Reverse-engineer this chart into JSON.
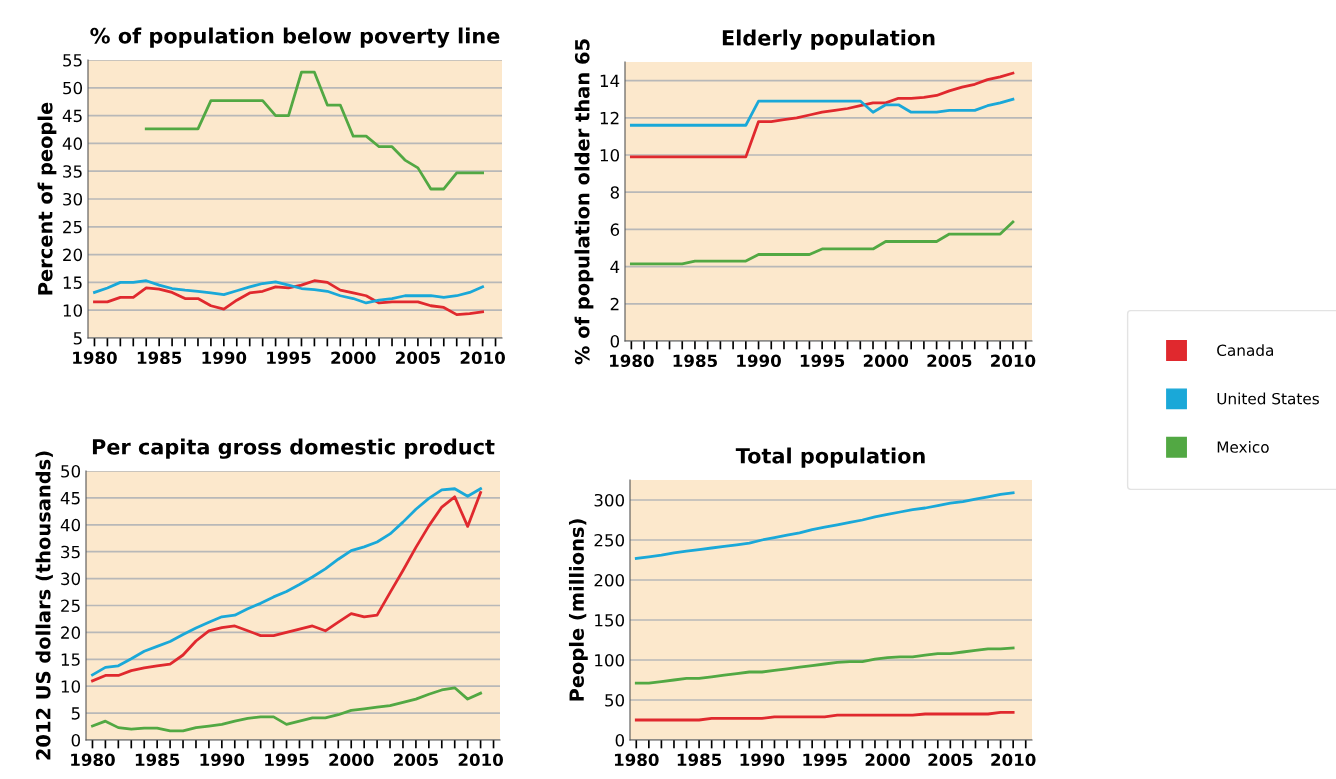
{
  "chart_data": [
    {
      "type": "line",
      "title": "% of population below poverty line",
      "ylabel": "Percent of people",
      "legend": "right",
      "grid": "y",
      "x": [
        1980,
        1981,
        1982,
        1983,
        1984,
        1985,
        1986,
        1987,
        1988,
        1989,
        1990,
        1991,
        1992,
        1993,
        1994,
        1995,
        1996,
        1997,
        1998,
        1999,
        2000,
        2001,
        2002,
        2003,
        2004,
        2005,
        2006,
        2007,
        2008,
        2009,
        2010
      ],
      "xlim": [
        1979.5,
        2011.5
      ],
      "xticks": [
        1980,
        {
          "value": 1981,
          "label": null
        },
        {
          "value": 1982,
          "label": null
        },
        {
          "value": 1983,
          "label": null
        },
        {
          "value": 1984,
          "label": null
        },
        1985,
        {
          "value": 1986,
          "label": null
        },
        {
          "value": 1987,
          "label": null
        },
        {
          "value": 1988,
          "label": null
        },
        {
          "value": 1989,
          "label": null
        },
        1990,
        {
          "value": 1991,
          "label": null
        },
        {
          "value": 1992,
          "label": null
        },
        {
          "value": 1993,
          "label": null
        },
        {
          "value": 1994,
          "label": null
        },
        1995,
        {
          "value": 1996,
          "label": null
        },
        {
          "value": 1997,
          "label": null
        },
        {
          "value": 1998,
          "label": null
        },
        {
          "value": 1999,
          "label": null
        },
        2000,
        {
          "value": 2001,
          "label": null
        },
        {
          "value": 2002,
          "label": null
        },
        {
          "value": 2003,
          "label": null
        },
        {
          "value": 2004,
          "label": null
        },
        2005,
        {
          "value": 2006,
          "label": null
        },
        {
          "value": 2007,
          "label": null
        },
        {
          "value": 2008,
          "label": null
        },
        {
          "value": 2009,
          "label": null
        },
        2010,
        {
          "value": 2011,
          "label": null
        }
      ],
      "ylim": [
        5,
        55
      ],
      "yticks": [
        5,
        10,
        15,
        20,
        25,
        30,
        35,
        40,
        45,
        50,
        55
      ],
      "series": [
        {
          "name": "Canada",
          "color": "#e0292e",
          "values": [
            11.5,
            11.5,
            12.3,
            12.3,
            14,
            13.8,
            13.2,
            12.1,
            12.1,
            10.8,
            10.2,
            11.8,
            13.1,
            13.4,
            14.2,
            14,
            14.5,
            15.3,
            15,
            13.6,
            13.1,
            12.6,
            11.3,
            11.5,
            11.5,
            11.5,
            10.8,
            10.5,
            9.2,
            9.4,
            9.7
          ]
        },
        {
          "name": "United States",
          "color": "#1aa8d8",
          "values": [
            13.2,
            14,
            15,
            15,
            15.3,
            14.5,
            13.9,
            13.6,
            13.4,
            13.1,
            12.8,
            13.5,
            14.2,
            14.8,
            15.1,
            14.5,
            13.9,
            13.7,
            13.4,
            12.6,
            12.1,
            11.3,
            11.8,
            12.1,
            12.6,
            12.6,
            12.6,
            12.3,
            12.6,
            13.2,
            14.2
          ]
        },
        {
          "name": "Mexico",
          "color": "#52a843",
          "values": [
            null,
            null,
            null,
            null,
            42.6,
            42.6,
            42.6,
            42.6,
            42.6,
            47.7,
            47.7,
            47.7,
            47.7,
            47.7,
            45,
            45,
            52.8,
            52.8,
            46.9,
            46.9,
            41.3,
            41.3,
            39.4,
            39.4,
            37,
            35.6,
            31.8,
            31.8,
            34.7,
            34.7,
            34.7
          ]
        }
      ]
    },
    {
      "type": "line",
      "title": "Elderly population",
      "ylabel": "% of population older than 65",
      "grid": "y",
      "x": [
        1980,
        1981,
        1982,
        1983,
        1984,
        1985,
        1986,
        1987,
        1988,
        1989,
        1990,
        1991,
        1992,
        1993,
        1994,
        1995,
        1996,
        1997,
        1998,
        1999,
        2000,
        2001,
        2002,
        2003,
        2004,
        2005,
        2006,
        2007,
        2008,
        2009,
        2010
      ],
      "xlim": [
        1979.5,
        2011.5
      ],
      "xticks": [
        1980,
        {
          "value": 1981,
          "label": null
        },
        {
          "value": 1982,
          "label": null
        },
        {
          "value": 1983,
          "label": null
        },
        {
          "value": 1984,
          "label": null
        },
        1985,
        {
          "value": 1986,
          "label": null
        },
        {
          "value": 1987,
          "label": null
        },
        {
          "value": 1988,
          "label": null
        },
        {
          "value": 1989,
          "label": null
        },
        1990,
        {
          "value": 1991,
          "label": null
        },
        {
          "value": 1992,
          "label": null
        },
        {
          "value": 1993,
          "label": null
        },
        {
          "value": 1994,
          "label": null
        },
        1995,
        {
          "value": 1996,
          "label": null
        },
        {
          "value": 1997,
          "label": null
        },
        {
          "value": 1998,
          "label": null
        },
        {
          "value": 1999,
          "label": null
        },
        2000,
        {
          "value": 2001,
          "label": null
        },
        {
          "value": 2002,
          "label": null
        },
        {
          "value": 2003,
          "label": null
        },
        {
          "value": 2004,
          "label": null
        },
        2005,
        {
          "value": 2006,
          "label": null
        },
        {
          "value": 2007,
          "label": null
        },
        {
          "value": 2008,
          "label": null
        },
        {
          "value": 2009,
          "label": null
        },
        2010,
        {
          "value": 2011,
          "label": null
        }
      ],
      "ylim": [
        0,
        15
      ],
      "yticks": [
        0,
        2,
        4,
        6,
        8,
        10,
        12,
        14
      ],
      "series": [
        {
          "color": "#e0292e",
          "values": [
            9.9,
            9.9,
            9.9,
            9.9,
            9.9,
            9.9,
            9.9,
            9.9,
            9.9,
            9.9,
            11.8,
            11.8,
            11.9,
            12,
            12.15,
            12.3,
            12.4,
            12.5,
            12.65,
            12.8,
            12.8,
            13.05,
            13.05,
            13.1,
            13.2,
            13.45,
            13.65,
            13.8,
            14.05,
            14.2,
            14.4
          ]
        },
        {
          "color": "#1aa8d8",
          "values": [
            11.6,
            11.6,
            11.6,
            11.6,
            11.6,
            11.6,
            11.6,
            11.6,
            11.6,
            11.6,
            12.9,
            12.9,
            12.9,
            12.9,
            12.9,
            12.9,
            12.9,
            12.9,
            12.9,
            12.3,
            12.7,
            12.7,
            12.3,
            12.3,
            12.3,
            12.4,
            12.4,
            12.4,
            12.65,
            12.8,
            13
          ]
        },
        {
          "color": "#52a843",
          "values": [
            4.15,
            4.15,
            4.15,
            4.15,
            4.15,
            4.3,
            4.3,
            4.3,
            4.3,
            4.3,
            4.65,
            4.65,
            4.65,
            4.65,
            4.65,
            4.95,
            4.95,
            4.95,
            4.95,
            4.95,
            5.35,
            5.35,
            5.35,
            5.35,
            5.35,
            5.75,
            5.75,
            5.75,
            5.75,
            5.75,
            6.4
          ]
        }
      ]
    },
    {
      "type": "line",
      "title": "Per capita gross domestic product",
      "ylabel": "2012 US dollars (thousands)",
      "grid": "y",
      "x": [
        1980,
        1981,
        1982,
        1983,
        1984,
        1985,
        1986,
        1987,
        1988,
        1989,
        1990,
        1991,
        1992,
        1993,
        1994,
        1995,
        1996,
        1997,
        1998,
        1999,
        2000,
        2001,
        2002,
        2003,
        2004,
        2005,
        2006,
        2007,
        2008,
        2009,
        2010
      ],
      "xlim": [
        1979.5,
        2011.5
      ],
      "xticks": [
        1980,
        {
          "value": 1981,
          "label": null
        },
        {
          "value": 1982,
          "label": null
        },
        {
          "value": 1983,
          "label": null
        },
        {
          "value": 1984,
          "label": null
        },
        1985,
        {
          "value": 1986,
          "label": null
        },
        {
          "value": 1987,
          "label": null
        },
        {
          "value": 1988,
          "label": null
        },
        {
          "value": 1989,
          "label": null
        },
        1990,
        {
          "value": 1991,
          "label": null
        },
        {
          "value": 1992,
          "label": null
        },
        {
          "value": 1993,
          "label": null
        },
        {
          "value": 1994,
          "label": null
        },
        1995,
        {
          "value": 1996,
          "label": null
        },
        {
          "value": 1997,
          "label": null
        },
        {
          "value": 1998,
          "label": null
        },
        {
          "value": 1999,
          "label": null
        },
        2000,
        {
          "value": 2001,
          "label": null
        },
        {
          "value": 2002,
          "label": null
        },
        {
          "value": 2003,
          "label": null
        },
        {
          "value": 2004,
          "label": null
        },
        2005,
        {
          "value": 2006,
          "label": null
        },
        {
          "value": 2007,
          "label": null
        },
        {
          "value": 2008,
          "label": null
        },
        {
          "value": 2009,
          "label": null
        },
        2010,
        {
          "value": 2011,
          "label": null
        }
      ],
      "ylim": [
        0,
        50
      ],
      "yticks": [
        0,
        5,
        10,
        15,
        20,
        25,
        30,
        35,
        40,
        45,
        50
      ],
      "series": [
        {
          "color": "#e0292e",
          "values": [
            11,
            12,
            12,
            12.9,
            13.4,
            13.8,
            14.1,
            15.8,
            18.4,
            20.3,
            20.9,
            21.2,
            20.3,
            19.4,
            19.4,
            20,
            20.6,
            21.2,
            20.3,
            21.9,
            23.5,
            22.9,
            23.2,
            27.4,
            31.5,
            35.8,
            39.8,
            43.3,
            45.2,
            39.7,
            46
          ]
        },
        {
          "color": "#1aa8d8",
          "values": [
            12.1,
            13.5,
            13.8,
            15.1,
            16.5,
            17.4,
            18.3,
            19.6,
            20.8,
            21.9,
            22.9,
            23.2,
            24.4,
            25.4,
            26.6,
            27.6,
            28.9,
            30.3,
            31.8,
            33.6,
            35.2,
            35.9,
            36.8,
            38.3,
            40.5,
            42.9,
            44.9,
            46.5,
            46.7,
            45.3,
            46.7
          ]
        },
        {
          "color": "#52a843",
          "values": [
            2.6,
            3.5,
            2.3,
            2,
            2.2,
            2.2,
            1.7,
            1.7,
            2.3,
            2.6,
            2.9,
            3.5,
            4,
            4.3,
            4.3,
            2.9,
            3.5,
            4.1,
            4.1,
            4.7,
            5.5,
            5.8,
            6.1,
            6.4,
            7,
            7.6,
            8.5,
            9.3,
            9.7,
            7.6,
            8.7
          ]
        }
      ]
    },
    {
      "type": "line",
      "title": "Total population",
      "ylabel": "People (millions)",
      "grid": "y",
      "x": [
        1980,
        1981,
        1982,
        1983,
        1984,
        1985,
        1986,
        1987,
        1988,
        1989,
        1990,
        1991,
        1992,
        1993,
        1994,
        1995,
        1996,
        1997,
        1998,
        1999,
        2000,
        2001,
        2002,
        2003,
        2004,
        2005,
        2006,
        2007,
        2008,
        2009,
        2010
      ],
      "xlim": [
        1979.5,
        2011.5
      ],
      "xticks": [
        1980,
        {
          "value": 1981,
          "label": null
        },
        {
          "value": 1982,
          "label": null
        },
        {
          "value": 1983,
          "label": null
        },
        {
          "value": 1984,
          "label": null
        },
        1985,
        {
          "value": 1986,
          "label": null
        },
        {
          "value": 1987,
          "label": null
        },
        {
          "value": 1988,
          "label": null
        },
        {
          "value": 1989,
          "label": null
        },
        1990,
        {
          "value": 1991,
          "label": null
        },
        {
          "value": 1992,
          "label": null
        },
        {
          "value": 1993,
          "label": null
        },
        {
          "value": 1994,
          "label": null
        },
        1995,
        {
          "value": 1996,
          "label": null
        },
        {
          "value": 1997,
          "label": null
        },
        {
          "value": 1998,
          "label": null
        },
        {
          "value": 1999,
          "label": null
        },
        2000,
        {
          "value": 2001,
          "label": null
        },
        {
          "value": 2002,
          "label": null
        },
        {
          "value": 2003,
          "label": null
        },
        {
          "value": 2004,
          "label": null
        },
        2005,
        {
          "value": 2006,
          "label": null
        },
        {
          "value": 2007,
          "label": null
        },
        {
          "value": 2008,
          "label": null
        },
        {
          "value": 2009,
          "label": null
        },
        2010,
        {
          "value": 2011,
          "label": null
        }
      ],
      "ylim": [
        0,
        325
      ],
      "yticks": [
        0,
        50,
        100,
        150,
        200,
        250,
        300
      ],
      "series": [
        {
          "color": "#e0292e",
          "values": [
            25,
            25,
            25,
            25,
            25,
            25,
            27,
            27,
            27,
            27,
            27,
            29,
            29,
            29,
            29,
            29,
            31,
            31,
            31,
            31,
            31,
            31,
            31,
            32.5,
            32.5,
            32.5,
            32.5,
            32.5,
            32.5,
            34.5,
            34.5
          ]
        },
        {
          "color": "#1aa8d8",
          "values": [
            227,
            229,
            231,
            234,
            236,
            238,
            240,
            242,
            244,
            246,
            250,
            253,
            256,
            259,
            263,
            266,
            269,
            272,
            275,
            279,
            282,
            285,
            288,
            290,
            293,
            296,
            298,
            301,
            304,
            307,
            309
          ]
        },
        {
          "color": "#52a843",
          "values": [
            71,
            71,
            73,
            75,
            77,
            77,
            79,
            81,
            83,
            85,
            85,
            87,
            89,
            91,
            93,
            95,
            97,
            98,
            98,
            101,
            103,
            104,
            104,
            106,
            108,
            108,
            110,
            112,
            114,
            114,
            115
          ]
        }
      ]
    }
  ]
}
